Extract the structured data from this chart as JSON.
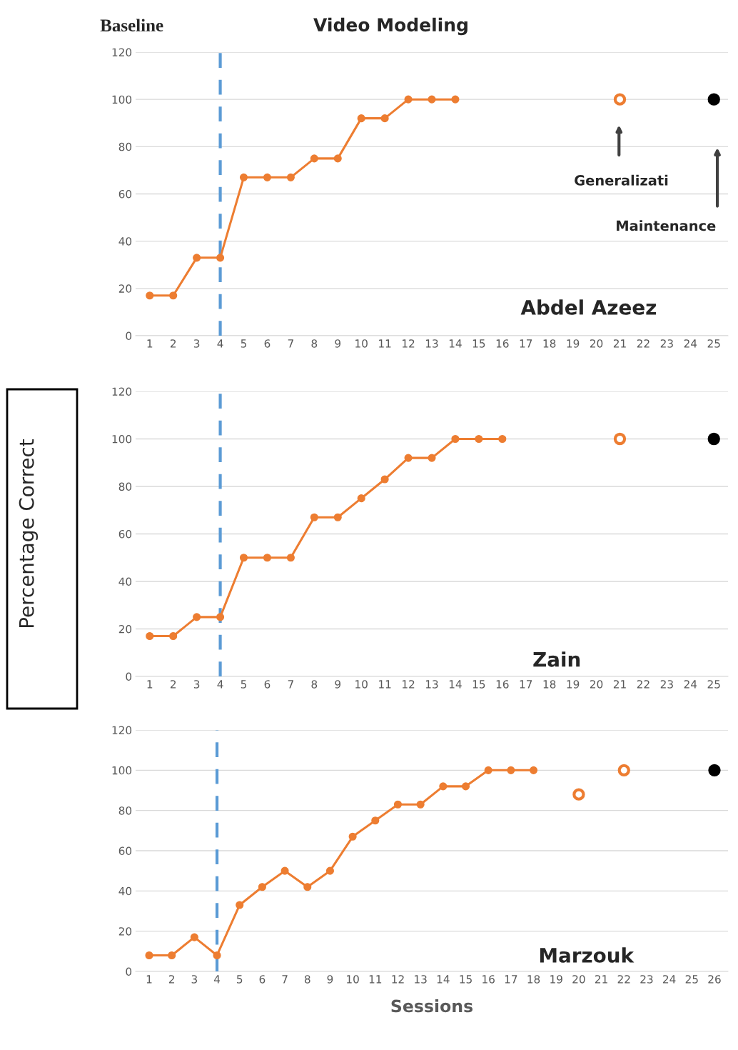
{
  "chart_data": [
    {
      "type": "line",
      "categories": [
        "1",
        "2",
        "3",
        "4",
        "5",
        "6",
        "7",
        "8",
        "9",
        "10",
        "11",
        "12",
        "13",
        "14",
        "15",
        "16",
        "17",
        "18",
        "19",
        "20",
        "21",
        "22",
        "23",
        "24",
        "25"
      ],
      "series": [
        {
          "color": "#ed7d31",
          "values": [
            17,
            17,
            33,
            33,
            67,
            67,
            67,
            75,
            75,
            92,
            92,
            100,
            100,
            100,
            null,
            null,
            null,
            null,
            null,
            null,
            null,
            null,
            null,
            null,
            null
          ]
        },
        {
          "type": "scatter",
          "color": "#ed7d31",
          "values": [
            null,
            null,
            null,
            null,
            null,
            null,
            null,
            null,
            null,
            null,
            null,
            null,
            null,
            null,
            null,
            null,
            null,
            null,
            null,
            null,
            100,
            null,
            null,
            null,
            null
          ]
        },
        {
          "type": "scatter",
          "color": "#000000",
          "values": [
            null,
            null,
            null,
            null,
            null,
            null,
            null,
            null,
            null,
            null,
            null,
            null,
            null,
            null,
            null,
            null,
            null,
            null,
            null,
            null,
            null,
            null,
            null,
            null,
            100
          ]
        }
      ],
      "ylim": [
        0,
        120
      ],
      "yticks": [
        0,
        20,
        40,
        60,
        80,
        100,
        120
      ],
      "grid": "y",
      "marker": "circle",
      "ref_lines": [
        {
          "axis": "x",
          "value": "4",
          "color": "#5b9bd5",
          "line_style": "dashed"
        }
      ],
      "annotations": [
        "Baseline",
        "Video Modeling",
        "Abdel Azeez",
        "Generalizati",
        "Maintenance"
      ]
    },
    {
      "type": "line",
      "categories": [
        "1",
        "2",
        "3",
        "4",
        "5",
        "6",
        "7",
        "8",
        "9",
        "10",
        "11",
        "12",
        "13",
        "14",
        "15",
        "16",
        "17",
        "18",
        "19",
        "20",
        "21",
        "22",
        "23",
        "24",
        "25"
      ],
      "series": [
        {
          "color": "#ed7d31",
          "values": [
            17,
            17,
            25,
            25,
            50,
            50,
            50,
            67,
            67,
            75,
            83,
            92,
            92,
            100,
            100,
            100,
            null,
            null,
            null,
            null,
            null,
            null,
            null,
            null,
            null
          ]
        },
        {
          "type": "scatter",
          "color": "#ed7d31",
          "values": [
            null,
            null,
            null,
            null,
            null,
            null,
            null,
            null,
            null,
            null,
            null,
            null,
            null,
            null,
            null,
            null,
            null,
            null,
            null,
            null,
            100,
            null,
            null,
            null,
            null
          ]
        },
        {
          "type": "scatter",
          "color": "#000000",
          "values": [
            null,
            null,
            null,
            null,
            null,
            null,
            null,
            null,
            null,
            null,
            null,
            null,
            null,
            null,
            null,
            null,
            null,
            null,
            null,
            null,
            null,
            null,
            null,
            null,
            100
          ]
        }
      ],
      "ylabel": "Percentage Correct",
      "ylim": [
        0,
        120
      ],
      "yticks": [
        0,
        20,
        40,
        60,
        80,
        100,
        120
      ],
      "grid": "y",
      "marker": "circle",
      "ref_lines": [
        {
          "axis": "x",
          "value": "4",
          "color": "#5b9bd5",
          "line_style": "dashed"
        }
      ],
      "annotations": [
        "Zain"
      ]
    },
    {
      "type": "line",
      "categories": [
        "1",
        "2",
        "3",
        "4",
        "5",
        "6",
        "7",
        "8",
        "9",
        "10",
        "11",
        "12",
        "13",
        "14",
        "15",
        "16",
        "17",
        "18",
        "19",
        "20",
        "21",
        "22",
        "23",
        "24",
        "25",
        "26"
      ],
      "series": [
        {
          "color": "#ed7d31",
          "values": [
            8,
            8,
            17,
            8,
            33,
            42,
            50,
            42,
            50,
            67,
            75,
            83,
            83,
            92,
            92,
            100,
            100,
            100,
            null,
            null,
            null,
            null,
            null,
            null,
            null,
            null
          ]
        },
        {
          "type": "scatter",
          "color": "#ed7d31",
          "values": [
            null,
            null,
            null,
            null,
            null,
            null,
            null,
            null,
            null,
            null,
            null,
            null,
            null,
            null,
            null,
            null,
            null,
            null,
            null,
            88,
            null,
            100,
            null,
            null,
            null,
            null
          ]
        },
        {
          "type": "scatter",
          "color": "#000000",
          "values": [
            null,
            null,
            null,
            null,
            null,
            null,
            null,
            null,
            null,
            null,
            null,
            null,
            null,
            null,
            null,
            null,
            null,
            null,
            null,
            null,
            null,
            null,
            null,
            null,
            null,
            100
          ]
        }
      ],
      "xlabel": "Sessions",
      "ylim": [
        0,
        120
      ],
      "yticks": [
        0,
        20,
        40,
        60,
        80,
        100,
        120
      ],
      "grid": "y",
      "marker": "circle",
      "ref_lines": [
        {
          "axis": "x",
          "value": "4",
          "color": "#5b9bd5",
          "line_style": "dashed"
        }
      ],
      "annotations": [
        "Marzouk"
      ]
    }
  ]
}
